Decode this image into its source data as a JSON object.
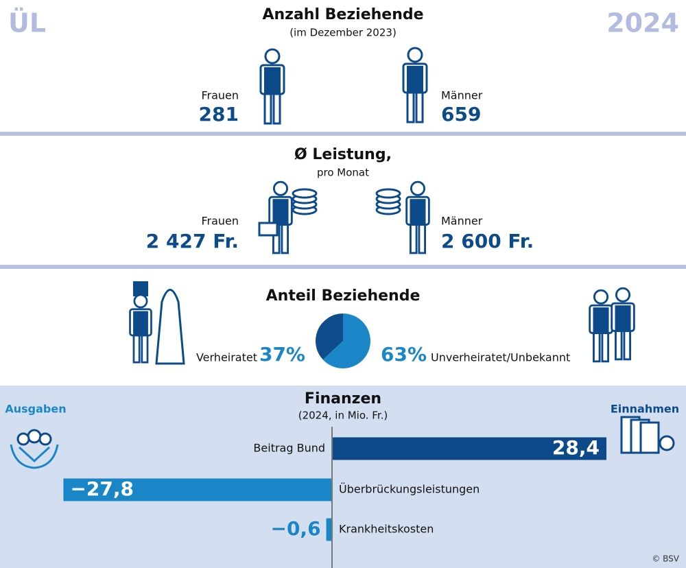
{
  "header": {
    "left": "ÜL",
    "right": "2024"
  },
  "recipients": {
    "title": "Anzahl Beziehende",
    "subtitle": "(im Dezember 2023)",
    "women_label": "Frauen",
    "women_value": "281",
    "men_label": "Männer",
    "men_value": "659"
  },
  "benefit": {
    "title": "Ø Leistung,",
    "subtitle": "pro Monat",
    "women_label": "Frauen",
    "women_value": "2 427 Fr.",
    "men_label": "Männer",
    "men_value": "2 600 Fr."
  },
  "chart_data": [
    {
      "type": "pie",
      "title": "Anteil Beziehende",
      "categories": [
        "Verheiratet",
        "Unverheiratet/Unbekannt"
      ],
      "values": [
        37,
        63
      ],
      "value_labels": [
        "37%",
        "63%"
      ],
      "colors": [
        "#0f4c8c",
        "#1a86c8"
      ]
    },
    {
      "type": "bar",
      "title": "Finanzen",
      "subtitle": "(2024, in Mio. Fr.)",
      "annotations": [
        "Ausgaben",
        "Einnahmen"
      ],
      "categories": [
        "Beitrag Bund",
        "Überbrückungsleistungen",
        "Krankheitskosten"
      ],
      "values": [
        28.4,
        -27.8,
        -0.6
      ],
      "value_labels": [
        "28,4",
        "−27,8",
        "−0,6"
      ],
      "colors": [
        "#0d4a8a",
        "#1a86c8",
        "#1a86c8"
      ],
      "xlim": [
        -28.4,
        28.4
      ]
    }
  ],
  "footer": {
    "credit": "© BSV"
  }
}
